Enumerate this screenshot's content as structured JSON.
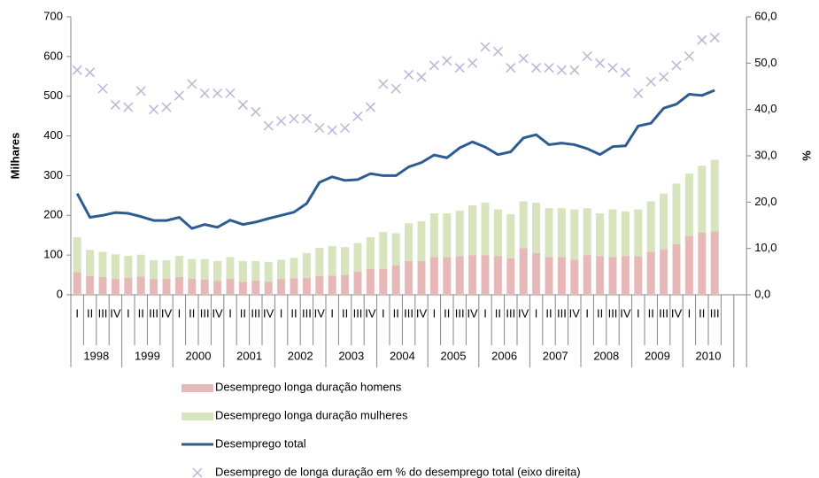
{
  "chart_data": {
    "type": "bar",
    "y_label": "Milhares",
    "y2_label": "%",
    "categories": [
      "I",
      "II",
      "III",
      "IV",
      "I",
      "II",
      "III",
      "IV",
      "I",
      "II",
      "III",
      "IV",
      "I",
      "II",
      "III",
      "IV",
      "I",
      "II",
      "III",
      "IV",
      "I",
      "II",
      "III",
      "IV",
      "I",
      "II",
      "III",
      "IV",
      "I",
      "II",
      "III",
      "IV",
      "I",
      "II",
      "III",
      "IV",
      "I",
      "II",
      "III",
      "IV",
      "I",
      "II",
      "III",
      "IV",
      "I",
      "II",
      "III",
      "IV",
      "I",
      "II",
      "III",
      null,
      null
    ],
    "years": [
      "1998",
      "1999",
      "2000",
      "2001",
      "2002",
      "2003",
      "2004",
      "2005",
      "2006",
      "2007",
      "2008",
      "2009",
      "2010"
    ],
    "ylim": [
      0,
      700
    ],
    "yticks": [
      0,
      100,
      200,
      300,
      400,
      500,
      600,
      700
    ],
    "y2lim": [
      0,
      60
    ],
    "y2ticks": [
      {
        "value": 0,
        "label": "0,0"
      },
      {
        "value": 10,
        "label": "10,0"
      },
      {
        "value": 20,
        "label": "20,0"
      },
      {
        "value": 30,
        "label": "30,0"
      },
      {
        "value": 40,
        "label": "40,0"
      },
      {
        "value": 50,
        "label": "50,0"
      },
      {
        "value": 60,
        "label": "60,0"
      }
    ],
    "series": [
      {
        "name": "Desemprego longa duração homens",
        "type": "bar",
        "stack": true,
        "color": "#e6b9b8",
        "values": [
          57,
          47,
          45,
          40,
          43,
          46,
          40,
          40,
          45,
          40,
          38,
          35,
          40,
          33,
          36,
          33,
          40,
          42,
          43,
          47,
          48,
          50,
          58,
          65,
          65,
          75,
          85,
          85,
          95,
          95,
          97,
          100,
          100,
          97,
          92,
          117,
          105,
          95,
          95,
          88,
          100,
          97,
          95,
          97,
          97,
          108,
          115,
          127,
          148,
          157,
          160,
          null,
          null
        ]
      },
      {
        "name": "Desemprego longa duração mulheres",
        "type": "bar",
        "stack": true,
        "color": "#d7e4bd",
        "values": [
          88,
          66,
          63,
          62,
          55,
          55,
          47,
          47,
          53,
          50,
          52,
          50,
          55,
          52,
          49,
          50,
          48,
          51,
          62,
          71,
          75,
          70,
          72,
          80,
          93,
          80,
          95,
          100,
          110,
          110,
          115,
          125,
          132,
          118,
          111,
          118,
          127,
          123,
          123,
          127,
          118,
          108,
          120,
          113,
          118,
          127,
          140,
          153,
          157,
          168,
          180,
          null,
          null
        ]
      },
      {
        "name": "Desemprego total",
        "type": "line",
        "color": "#2e5c92",
        "values": [
          255,
          195,
          200,
          207,
          205,
          197,
          187,
          187,
          195,
          167,
          177,
          170,
          188,
          177,
          183,
          192,
          200,
          208,
          230,
          283,
          297,
          288,
          290,
          305,
          300,
          300,
          322,
          333,
          352,
          345,
          370,
          385,
          372,
          353,
          360,
          395,
          403,
          378,
          382,
          378,
          368,
          353,
          373,
          375,
          425,
          432,
          470,
          480,
          505,
          502,
          515,
          null,
          null
        ]
      },
      {
        "name": "Desemprego de longa duração em % do desemprego total  (eixo direita)",
        "type": "scatter",
        "axis": "y2",
        "color": "#b7b7d6",
        "values": [
          48.5,
          48,
          44.5,
          41,
          40.5,
          44,
          40,
          40.5,
          43,
          45.5,
          43.5,
          43.5,
          43.5,
          41,
          39.5,
          36.5,
          37.5,
          38,
          38,
          36,
          35.5,
          36,
          38.5,
          40.5,
          45.5,
          44.5,
          47.5,
          47,
          49.5,
          50.5,
          49,
          50,
          53.5,
          52.5,
          49,
          51,
          49,
          49,
          48.5,
          48.5,
          51.5,
          50,
          49,
          48,
          43.5,
          46,
          47,
          49.5,
          51.5,
          55,
          55.5,
          null,
          null
        ]
      }
    ]
  }
}
